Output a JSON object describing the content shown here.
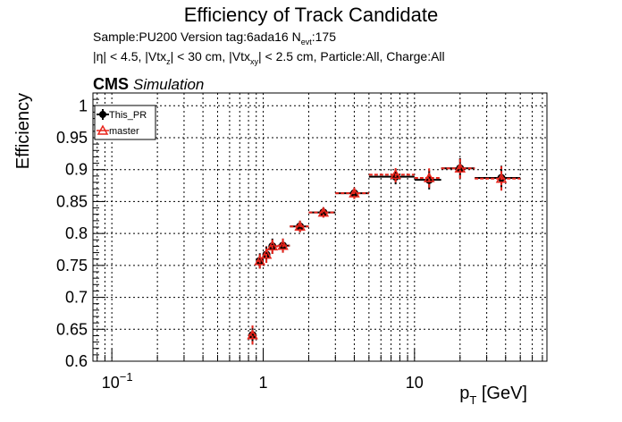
{
  "header": {
    "title": "Efficiency of Track Candidate",
    "sample_prefix": "Sample:PU200   Version tag:6ada16  N",
    "sample_sub": "evt",
    "sample_suffix": ":175",
    "cuts_1": "|η| < 4.5, |Vtx",
    "cuts_sub1": "z",
    "cuts_2": "| < 30 cm, |Vtx",
    "cuts_sub2": "xy",
    "cuts_3": "| < 2.5 cm, Particle:All, Charge:All",
    "cms_label": "CMS",
    "cms_sub": "Simulation"
  },
  "chart_data": {
    "type": "scatter",
    "xscale": "log",
    "xlim": [
      0.075,
      75
    ],
    "ylim": [
      0.6,
      1.02
    ],
    "xlabel_main": "p",
    "xlabel_sub": "T",
    "xlabel_unit": " [GeV]",
    "ylabel": "Efficiency",
    "grid": true,
    "legend_position": "top-left",
    "y_ticks": [
      "0.6",
      "0.65",
      "0.7",
      "0.75",
      "0.8",
      "0.85",
      "0.9",
      "0.95",
      "1"
    ],
    "x_ticks": [
      {
        "base": "10",
        "exp": "−1",
        "value": 0.1
      },
      {
        "base": "1",
        "exp": "",
        "value": 1
      },
      {
        "base": "10",
        "exp": "",
        "value": 10
      }
    ],
    "colors": {
      "this_pr": "#000000",
      "master": "#e8251c"
    },
    "series": [
      {
        "name": "This_PR",
        "marker": "filled-circle",
        "points": [
          {
            "x": 0.85,
            "xlo": 0.8,
            "xhi": 0.9,
            "y": 0.641,
            "err": 0.015
          },
          {
            "x": 0.95,
            "xlo": 0.9,
            "xhi": 1.0,
            "y": 0.757,
            "err": 0.012
          },
          {
            "x": 1.05,
            "xlo": 1.0,
            "xhi": 1.1,
            "y": 0.767,
            "err": 0.013
          },
          {
            "x": 1.15,
            "xlo": 1.1,
            "xhi": 1.25,
            "y": 0.78,
            "err": 0.012
          },
          {
            "x": 1.35,
            "xlo": 1.25,
            "xhi": 1.5,
            "y": 0.781,
            "err": 0.011
          },
          {
            "x": 1.75,
            "xlo": 1.5,
            "xhi": 2.0,
            "y": 0.811,
            "err": 0.009
          },
          {
            "x": 2.5,
            "xlo": 2.0,
            "xhi": 3.0,
            "y": 0.833,
            "err": 0.008
          },
          {
            "x": 4.0,
            "xlo": 3.0,
            "xhi": 5.0,
            "y": 0.863,
            "err": 0.009
          },
          {
            "x": 7.5,
            "xlo": 5.0,
            "xhi": 10.0,
            "y": 0.889,
            "err": 0.012
          },
          {
            "x": 12.5,
            "xlo": 10.0,
            "xhi": 15.0,
            "y": 0.884,
            "err": 0.015
          },
          {
            "x": 20.0,
            "xlo": 15.0,
            "xhi": 25.0,
            "y": 0.902,
            "err": 0.016
          },
          {
            "x": 37.5,
            "xlo": 25.0,
            "xhi": 50.0,
            "y": 0.887,
            "err": 0.019
          }
        ]
      },
      {
        "name": "master",
        "marker": "open-triangle",
        "points": [
          {
            "x": 0.85,
            "xlo": 0.8,
            "xhi": 0.9,
            "y": 0.641,
            "err": 0.015
          },
          {
            "x": 0.95,
            "xlo": 0.9,
            "xhi": 1.0,
            "y": 0.757,
            "err": 0.012
          },
          {
            "x": 1.05,
            "xlo": 1.0,
            "xhi": 1.1,
            "y": 0.767,
            "err": 0.013
          },
          {
            "x": 1.15,
            "xlo": 1.1,
            "xhi": 1.25,
            "y": 0.78,
            "err": 0.012
          },
          {
            "x": 1.35,
            "xlo": 1.25,
            "xhi": 1.5,
            "y": 0.781,
            "err": 0.011
          },
          {
            "x": 1.75,
            "xlo": 1.5,
            "xhi": 2.0,
            "y": 0.811,
            "err": 0.009
          },
          {
            "x": 2.5,
            "xlo": 2.0,
            "xhi": 3.0,
            "y": 0.833,
            "err": 0.008
          },
          {
            "x": 4.0,
            "xlo": 3.0,
            "xhi": 5.0,
            "y": 0.863,
            "err": 0.009
          },
          {
            "x": 7.5,
            "xlo": 5.0,
            "xhi": 10.0,
            "y": 0.892,
            "err": 0.012
          },
          {
            "x": 12.5,
            "xlo": 10.0,
            "xhi": 15.0,
            "y": 0.887,
            "err": 0.015
          },
          {
            "x": 20.0,
            "xlo": 15.0,
            "xhi": 25.0,
            "y": 0.902,
            "err": 0.016
          },
          {
            "x": 37.5,
            "xlo": 25.0,
            "xhi": 50.0,
            "y": 0.886,
            "err": 0.019
          }
        ]
      }
    ]
  }
}
